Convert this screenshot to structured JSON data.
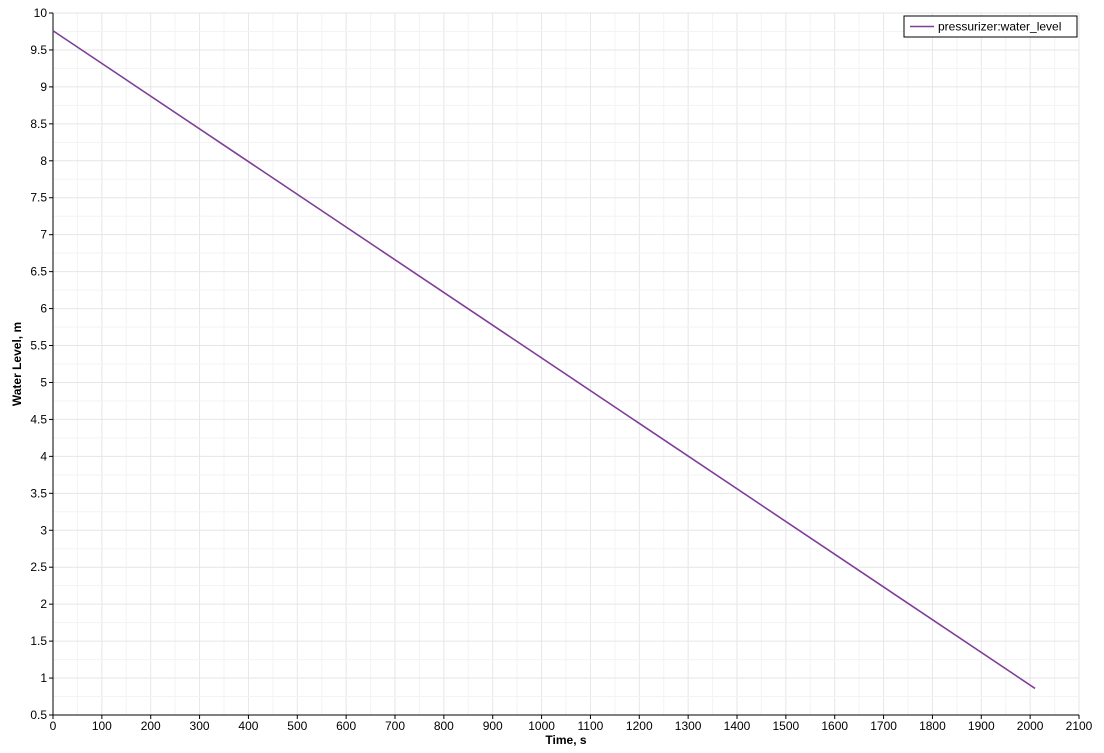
{
  "chart_data": {
    "type": "line",
    "xlabel": "Time, s",
    "ylabel": "Water Level, m",
    "xlim": [
      0,
      2100
    ],
    "ylim": [
      0.5,
      10
    ],
    "x_ticks": [
      0,
      100,
      200,
      300,
      400,
      500,
      600,
      700,
      800,
      900,
      1000,
      1100,
      1200,
      1300,
      1400,
      1500,
      1600,
      1700,
      1800,
      1900,
      2000,
      2100
    ],
    "y_ticks": [
      0.5,
      1,
      1.5,
      2,
      2.5,
      3,
      3.5,
      4,
      4.5,
      5,
      5.5,
      6,
      6.5,
      7,
      7.5,
      8,
      8.5,
      9,
      9.5,
      10
    ],
    "y_tick_labels": [
      "0.5",
      "1",
      "1.5",
      "2",
      "2.5",
      "3",
      "3.5",
      "4",
      "4.5",
      "5",
      "5.5",
      "6",
      "6.5",
      "7",
      "7.5",
      "8",
      "8.5",
      "9",
      "9.5",
      "10"
    ],
    "grid": true,
    "legend": {
      "position": "top-right"
    },
    "series": [
      {
        "name": "pressurizer:water_level",
        "color": "#7e3f98",
        "x": [
          0,
          2010
        ],
        "y": [
          9.76,
          0.86
        ]
      }
    ]
  }
}
